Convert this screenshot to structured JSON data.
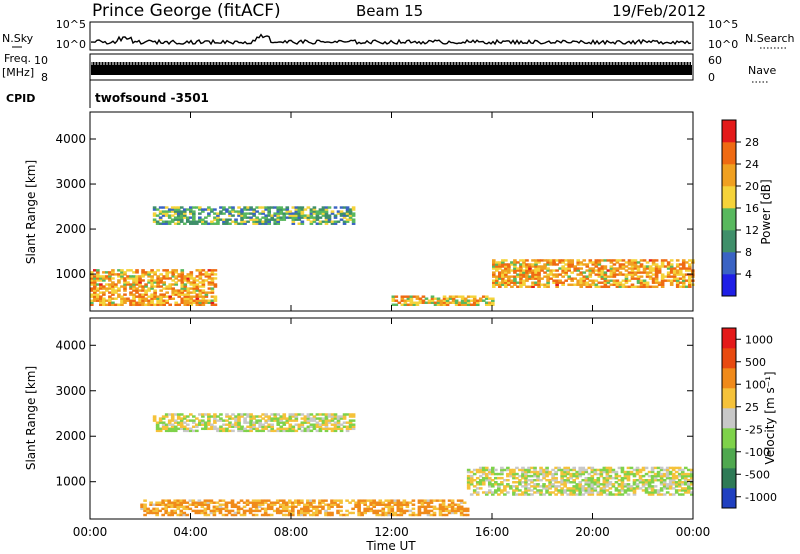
{
  "header": {
    "station": "Prince George (fitACF)",
    "beam": "Beam 15",
    "date": "19/Feb/2012"
  },
  "top_panels": {
    "nsky_label": "N.Sky",
    "nsky_ticks": [
      "10^5",
      "10^0"
    ],
    "nsearch_label": "N.Search",
    "freq_label_1": "Freq.",
    "freq_label_2": "[MHz]",
    "freq_ticks": [
      "10",
      "8"
    ],
    "nave_ticks": [
      "60",
      "0"
    ],
    "nave_label": "Nave",
    "cpid_label": "CPID",
    "cpid_value": "twofsound -3501"
  },
  "chart_data": [
    {
      "type": "heatmap",
      "ylabel": "Slant Range [km]",
      "xlabel": "Time UT",
      "x_ticks": [
        "00:00",
        "04:00",
        "08:00",
        "12:00",
        "16:00",
        "20:00",
        "00:00"
      ],
      "x_range_hours": [
        0,
        24
      ],
      "y_ticks": [
        1000,
        2000,
        3000,
        4000
      ],
      "ylim": [
        180,
        4600
      ],
      "colorbar": {
        "label": "Power [dB]",
        "ticks": [
          4,
          8,
          12,
          16,
          20,
          24,
          28
        ],
        "colors": [
          "#1f1fe6",
          "#3a63c4",
          "#3f8f6a",
          "#58b85e",
          "#f5d33a",
          "#f0a020",
          "#ef6a12",
          "#e41a1a"
        ]
      },
      "features": [
        {
          "name": "near-range strong echoes",
          "start_h": 0.0,
          "end_h": 5.0,
          "range_km": [
            300,
            1100
          ],
          "power_db": 28
        },
        {
          "name": "distant band",
          "start_h": 2.5,
          "end_h": 10.5,
          "range_km": [
            2100,
            2500
          ],
          "power_db": 18
        },
        {
          "name": "afternoon near band",
          "start_h": 12.0,
          "end_h": 16.0,
          "range_km": [
            300,
            500
          ],
          "power_db": 26
        },
        {
          "name": "evening band",
          "start_h": 16.0,
          "end_h": 24.0,
          "range_km": [
            700,
            1300
          ],
          "power_db": 28
        }
      ]
    },
    {
      "type": "heatmap",
      "ylabel": "Slant Range [km]",
      "xlabel": "Time UT",
      "x_ticks": [
        "00:00",
        "04:00",
        "08:00",
        "12:00",
        "16:00",
        "20:00",
        "00:00"
      ],
      "x_range_hours": [
        0,
        24
      ],
      "y_ticks": [
        1000,
        2000,
        3000,
        4000
      ],
      "ylim": [
        180,
        4600
      ],
      "colorbar": {
        "label": "Velocity [m s⁻¹]",
        "ticks": [
          "1000",
          "500",
          "100",
          "25",
          "-25",
          "-100",
          "-500",
          "-1000"
        ],
        "colors": [
          "#2040c0",
          "#2e7a56",
          "#4fa84f",
          "#7ed24a",
          "#c8c8c8",
          "#f5c23a",
          "#f08a1a",
          "#e84a10",
          "#e41a1a"
        ]
      },
      "features": [
        {
          "name": "ground scatter band",
          "start_h": 2.5,
          "end_h": 10.5,
          "range_km": [
            2100,
            2500
          ],
          "velocity": 0
        },
        {
          "name": "near-range flow",
          "start_h": 2.0,
          "end_h": 15.0,
          "range_km": [
            250,
            600
          ],
          "velocity": -120
        },
        {
          "name": "evening ground scatter",
          "start_h": 15.0,
          "end_h": 24.0,
          "range_km": [
            700,
            1300
          ],
          "velocity": 0
        }
      ]
    }
  ]
}
